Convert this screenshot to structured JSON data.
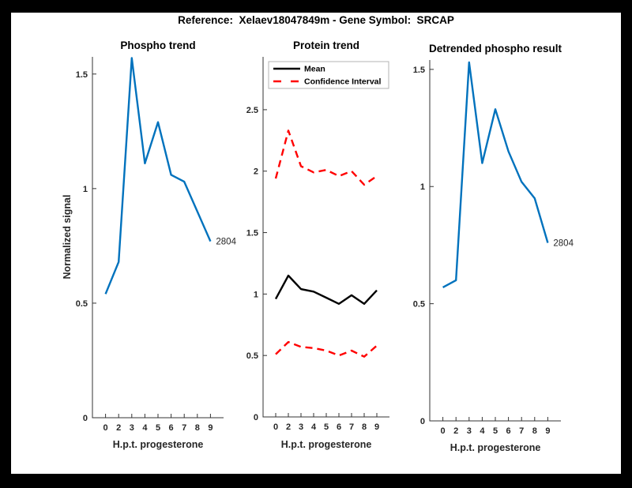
{
  "figure": {
    "title": "Reference:  Xelaev18047849m - Gene Symbol:  SRCAP",
    "ylabel": "Normalized signal"
  },
  "style": {
    "axis_color": "#333333",
    "background": "#ffffff",
    "frame_color": "#000000",
    "blue": "#0072bd",
    "red": "#ff0000",
    "black": "#000000",
    "line_width": 2.4
  },
  "chart_data": [
    {
      "type": "line",
      "title": "Phospho trend",
      "xlabel": "H.p.t. progesterone",
      "ylabel": "Normalized signal",
      "x_tick_labels": [
        "0",
        "2",
        "3",
        "4",
        "5",
        "6",
        "7",
        "8",
        "9"
      ],
      "yticks": [
        0,
        0.5,
        1,
        1.5
      ],
      "ylim": [
        0,
        1.575
      ],
      "grid": false,
      "series": [
        {
          "name": "Phospho signal",
          "key": "phospho-line",
          "color": "#0072bd",
          "dash": false,
          "values": [
            0.54,
            0.68,
            1.57,
            1.11,
            1.29,
            1.06,
            1.03,
            0.9,
            0.77
          ]
        }
      ],
      "annotation": {
        "text": "2804"
      },
      "legend": null
    },
    {
      "type": "line",
      "title": "Protein trend",
      "xlabel": "H.p.t. progesterone",
      "x_tick_labels": [
        "0",
        "2",
        "3",
        "4",
        "5",
        "6",
        "7",
        "8",
        "9"
      ],
      "yticks": [
        0,
        0.5,
        1,
        1.5,
        2,
        2.5
      ],
      "ylim": [
        0,
        2.93
      ],
      "grid": false,
      "series": [
        {
          "name": "Mean",
          "key": "mean-line",
          "color": "#000000",
          "dash": false,
          "values": [
            0.96,
            1.15,
            1.04,
            1.02,
            0.97,
            0.92,
            0.99,
            0.92,
            1.03
          ]
        },
        {
          "name": "Confidence Interval",
          "key": "ci-upper-line",
          "color": "#ff0000",
          "dash": true,
          "values": [
            1.94,
            2.33,
            2.04,
            1.99,
            2.01,
            1.96,
            2.0,
            1.89,
            1.96
          ]
        },
        {
          "name": "Confidence Interval",
          "key": "ci-lower-line",
          "color": "#ff0000",
          "dash": true,
          "values": [
            0.51,
            0.61,
            0.57,
            0.56,
            0.54,
            0.5,
            0.54,
            0.49,
            0.58
          ]
        }
      ],
      "annotation": null,
      "legend": {
        "position": "northwest",
        "entries": [
          {
            "label": "Mean",
            "color": "#000000",
            "dash": false
          },
          {
            "label": "Confidence Interval",
            "color": "#ff0000",
            "dash": true
          }
        ]
      }
    },
    {
      "type": "line",
      "title": "Detrended phospho result",
      "xlabel": "H.p.t. progesterone",
      "x_tick_labels": [
        "0",
        "2",
        "3",
        "4",
        "5",
        "6",
        "7",
        "8",
        "9"
      ],
      "yticks": [
        0,
        0.5,
        1,
        1.5
      ],
      "ylim": [
        0,
        1.54
      ],
      "grid": false,
      "series": [
        {
          "name": "Detrended phospho signal",
          "key": "detrended-line",
          "color": "#0072bd",
          "dash": false,
          "values": [
            0.57,
            0.6,
            1.53,
            1.1,
            1.33,
            1.15,
            1.02,
            0.95,
            0.76
          ]
        }
      ],
      "annotation": {
        "text": "2804"
      },
      "legend": null
    }
  ]
}
